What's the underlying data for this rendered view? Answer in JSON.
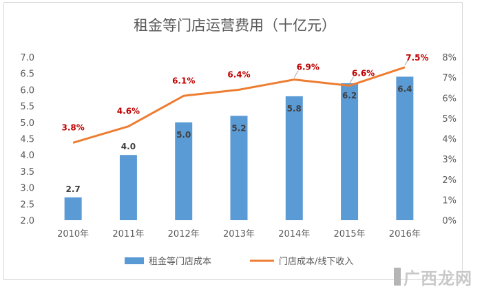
{
  "chart_data": {
    "type": "bar+line",
    "title": "租金等门店运营费用（十亿元）",
    "categories": [
      "2010年",
      "2011年",
      "2012年",
      "2013年",
      "2014年",
      "2015年",
      "2016年"
    ],
    "series": [
      {
        "name": "租金等门店成本",
        "type": "bar",
        "axis": "left",
        "values": [
          2.7,
          4.0,
          5.0,
          5.2,
          5.8,
          6.2,
          6.4
        ],
        "labels": [
          "2.7",
          "4.0",
          "5.0",
          "5.2",
          "5.8",
          "6.2",
          "6.4"
        ]
      },
      {
        "name": "门店成本/线下收入",
        "type": "line",
        "axis": "right",
        "values": [
          3.8,
          4.6,
          6.1,
          6.4,
          6.9,
          6.6,
          7.5
        ],
        "labels": [
          "3.8%",
          "4.6%",
          "6.1%",
          "6.4%",
          "6.9%",
          "6.6%",
          "7.5%"
        ]
      }
    ],
    "y_left": {
      "min": 2.0,
      "max": 7.0,
      "ticks": [
        "2.0",
        "2.5",
        "3.0",
        "3.5",
        "4.0",
        "4.5",
        "5.0",
        "5.5",
        "6.0",
        "6.5",
        "7.0"
      ]
    },
    "y_right": {
      "min": 0,
      "max": 8,
      "ticks": [
        "0%",
        "1%",
        "2%",
        "3%",
        "4%",
        "5%",
        "6%",
        "7%",
        "8%"
      ]
    },
    "grid": false,
    "legend": "bottom",
    "colors": {
      "bar": "#5b9bd5",
      "line": "#ed7d31",
      "line_label": "#c00000",
      "axis_text": "#595959",
      "title": "#595959"
    }
  },
  "watermark": {
    "text": "广西龙网"
  }
}
